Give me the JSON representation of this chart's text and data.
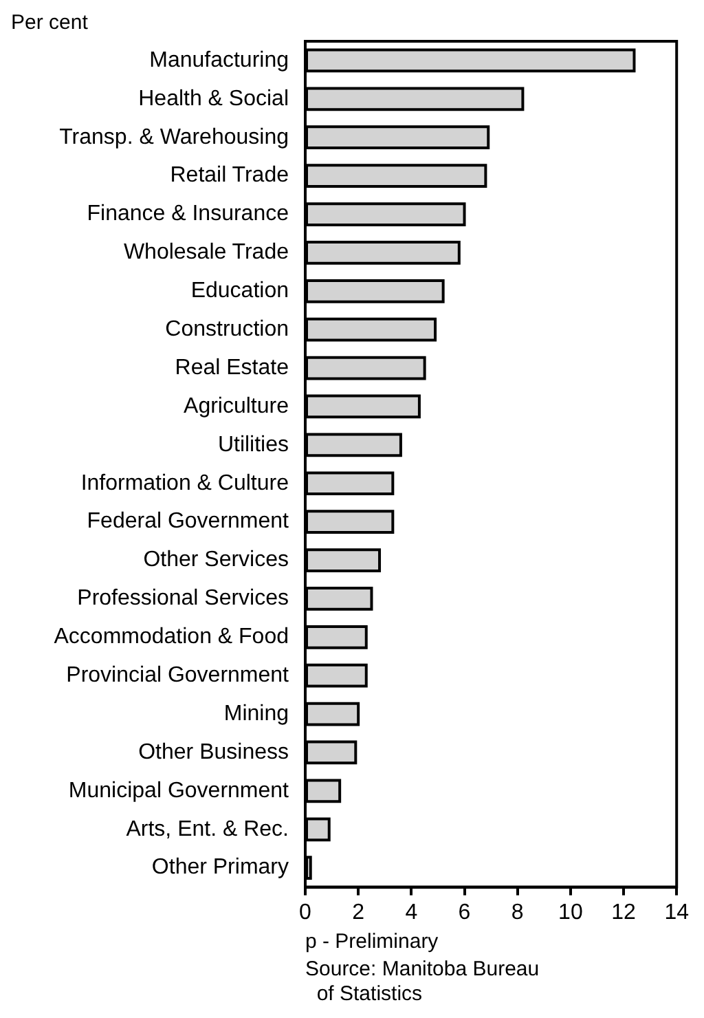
{
  "chart_data": {
    "type": "bar",
    "orientation": "horizontal",
    "xlabel": "Per cent",
    "categories": [
      "Manufacturing",
      "Health & Social",
      "Transp. & Warehousing",
      "Retail Trade",
      "Finance & Insurance",
      "Wholesale Trade",
      "Education",
      "Construction",
      "Real Estate",
      "Agriculture",
      "Utilities",
      "Information & Culture",
      "Federal Government",
      "Other Services",
      "Professional Services",
      "Accommodation & Food",
      "Provincial Government",
      "Mining",
      "Other Business",
      "Municipal Government",
      "Arts, Ent. & Rec.",
      "Other Primary"
    ],
    "values": [
      12.4,
      8.2,
      6.9,
      6.8,
      6.0,
      5.8,
      5.2,
      4.9,
      4.5,
      4.3,
      3.6,
      3.3,
      3.3,
      2.8,
      2.5,
      2.3,
      2.3,
      2.0,
      1.9,
      1.3,
      0.9,
      0.2
    ],
    "color": "#d3d3d3",
    "xlim": [
      0,
      14
    ],
    "xticks": [
      0,
      2,
      4,
      6,
      8,
      10,
      12,
      14
    ],
    "grid": false,
    "legend": false,
    "annotations": [
      "p - Preliminary",
      "Source: Manitoba Bureau\n  of Statistics"
    ]
  }
}
